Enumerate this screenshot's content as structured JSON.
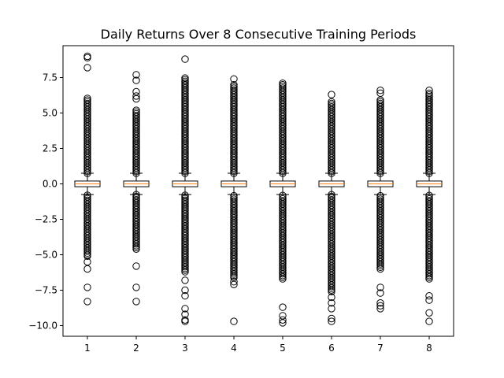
{
  "chart_data": {
    "type": "boxplot",
    "title": "Daily Returns Over 8 Consecutive Training Periods",
    "xlabel": "",
    "ylabel": "",
    "categories": [
      "1",
      "2",
      "3",
      "4",
      "5",
      "6",
      "7",
      "8"
    ],
    "ylim": [
      -10.75,
      9.75
    ],
    "yticks": [
      -10.0,
      -7.5,
      -5.0,
      -2.5,
      0.0,
      2.5,
      5.0,
      7.5
    ],
    "ytick_labels": [
      "−10.0",
      "−7.5",
      "−5.0",
      "−2.5",
      "0.0",
      "2.5",
      "5.0",
      "7.5"
    ],
    "colors": {
      "median": "#ff7f0e",
      "box": "#000000",
      "background": "#ffffff"
    },
    "boxes": [
      {
        "category": "1",
        "q1": -0.2,
        "median": 0.0,
        "q3": 0.2,
        "whisker_low": -0.75,
        "whisker_high": 0.75,
        "outlier_dense_low": [
          -5.0,
          -0.75
        ],
        "outlier_dense_high": [
          0.75,
          6.1
        ],
        "outliers_sparse": [
          -8.3,
          -7.3,
          -6.0,
          -5.5,
          -5.1,
          8.2,
          8.9,
          9.0
        ]
      },
      {
        "category": "2",
        "q1": -0.2,
        "median": 0.0,
        "q3": 0.2,
        "whisker_low": -0.75,
        "whisker_high": 0.75,
        "outlier_dense_low": [
          -4.6,
          -0.75
        ],
        "outlier_dense_high": [
          0.75,
          5.3
        ],
        "outliers_sparse": [
          -8.3,
          -7.3,
          -5.8,
          6.0,
          6.2,
          6.5,
          7.3,
          7.7
        ]
      },
      {
        "category": "3",
        "q1": -0.2,
        "median": 0.0,
        "q3": 0.2,
        "whisker_low": -0.75,
        "whisker_high": 0.75,
        "outlier_dense_low": [
          -6.2,
          -0.75
        ],
        "outlier_dense_high": [
          0.75,
          7.5
        ],
        "outliers_sparse": [
          -9.7,
          -9.6,
          -9.2,
          -8.8,
          -7.9,
          -7.5,
          -6.8,
          8.8
        ]
      },
      {
        "category": "4",
        "q1": -0.2,
        "median": 0.0,
        "q3": 0.2,
        "whisker_low": -0.75,
        "whisker_high": 0.75,
        "outlier_dense_low": [
          -6.6,
          -0.75
        ],
        "outlier_dense_high": [
          0.75,
          7.1
        ],
        "outliers_sparse": [
          -9.7,
          -7.1,
          -6.9,
          7.4
        ]
      },
      {
        "category": "5",
        "q1": -0.2,
        "median": 0.0,
        "q3": 0.2,
        "whisker_low": -0.75,
        "whisker_high": 0.75,
        "outlier_dense_low": [
          -6.7,
          -0.75
        ],
        "outlier_dense_high": [
          0.75,
          7.0
        ],
        "outliers_sparse": [
          -9.8,
          -9.6,
          -9.3,
          -8.7,
          7.1
        ]
      },
      {
        "category": "6",
        "q1": -0.2,
        "median": 0.0,
        "q3": 0.2,
        "whisker_low": -0.75,
        "whisker_high": 0.75,
        "outlier_dense_low": [
          -7.6,
          -0.75
        ],
        "outlier_dense_high": [
          0.75,
          5.8
        ],
        "outliers_sparse": [
          -9.7,
          -9.5,
          -8.8,
          -8.4,
          -8.0,
          6.3
        ]
      },
      {
        "category": "7",
        "q1": -0.2,
        "median": 0.0,
        "q3": 0.2,
        "whisker_low": -0.75,
        "whisker_high": 0.75,
        "outlier_dense_low": [
          -6.0,
          -0.75
        ],
        "outlier_dense_high": [
          0.75,
          6.0
        ],
        "outliers_sparse": [
          -8.8,
          -8.6,
          -8.4,
          -7.7,
          -7.3,
          6.4,
          6.6
        ]
      },
      {
        "category": "8",
        "q1": -0.2,
        "median": 0.0,
        "q3": 0.2,
        "whisker_low": -0.75,
        "whisker_high": 0.75,
        "outlier_dense_low": [
          -6.7,
          -0.75
        ],
        "outlier_dense_high": [
          0.75,
          6.5
        ],
        "outliers_sparse": [
          -9.7,
          -9.1,
          -8.2,
          -7.9,
          6.6
        ]
      }
    ]
  }
}
